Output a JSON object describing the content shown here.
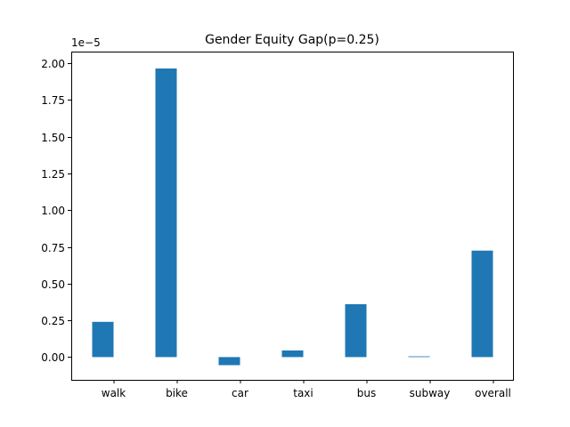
{
  "chart_data": {
    "type": "bar",
    "title": "Gender Equity Gap(p=0.25)",
    "xlabel": "",
    "ylabel": "",
    "y_offset_label": "1e−5",
    "categories": [
      "walk",
      "bike",
      "car",
      "taxi",
      "bus",
      "subway",
      "overall"
    ],
    "values": [
      0.24,
      1.965,
      -0.055,
      0.045,
      0.36,
      0.005,
      0.725
    ],
    "ylim": [
      -0.155,
      2.08
    ],
    "yticks": [
      0.0,
      0.25,
      0.5,
      0.75,
      1.0,
      1.25,
      1.5,
      1.75,
      2.0
    ],
    "ytick_labels": [
      "0.00",
      "0.25",
      "0.50",
      "0.75",
      "1.00",
      "1.25",
      "1.50",
      "1.75",
      "2.00"
    ],
    "bar_color": "#1f77b4",
    "grid": false,
    "legend": "none"
  }
}
